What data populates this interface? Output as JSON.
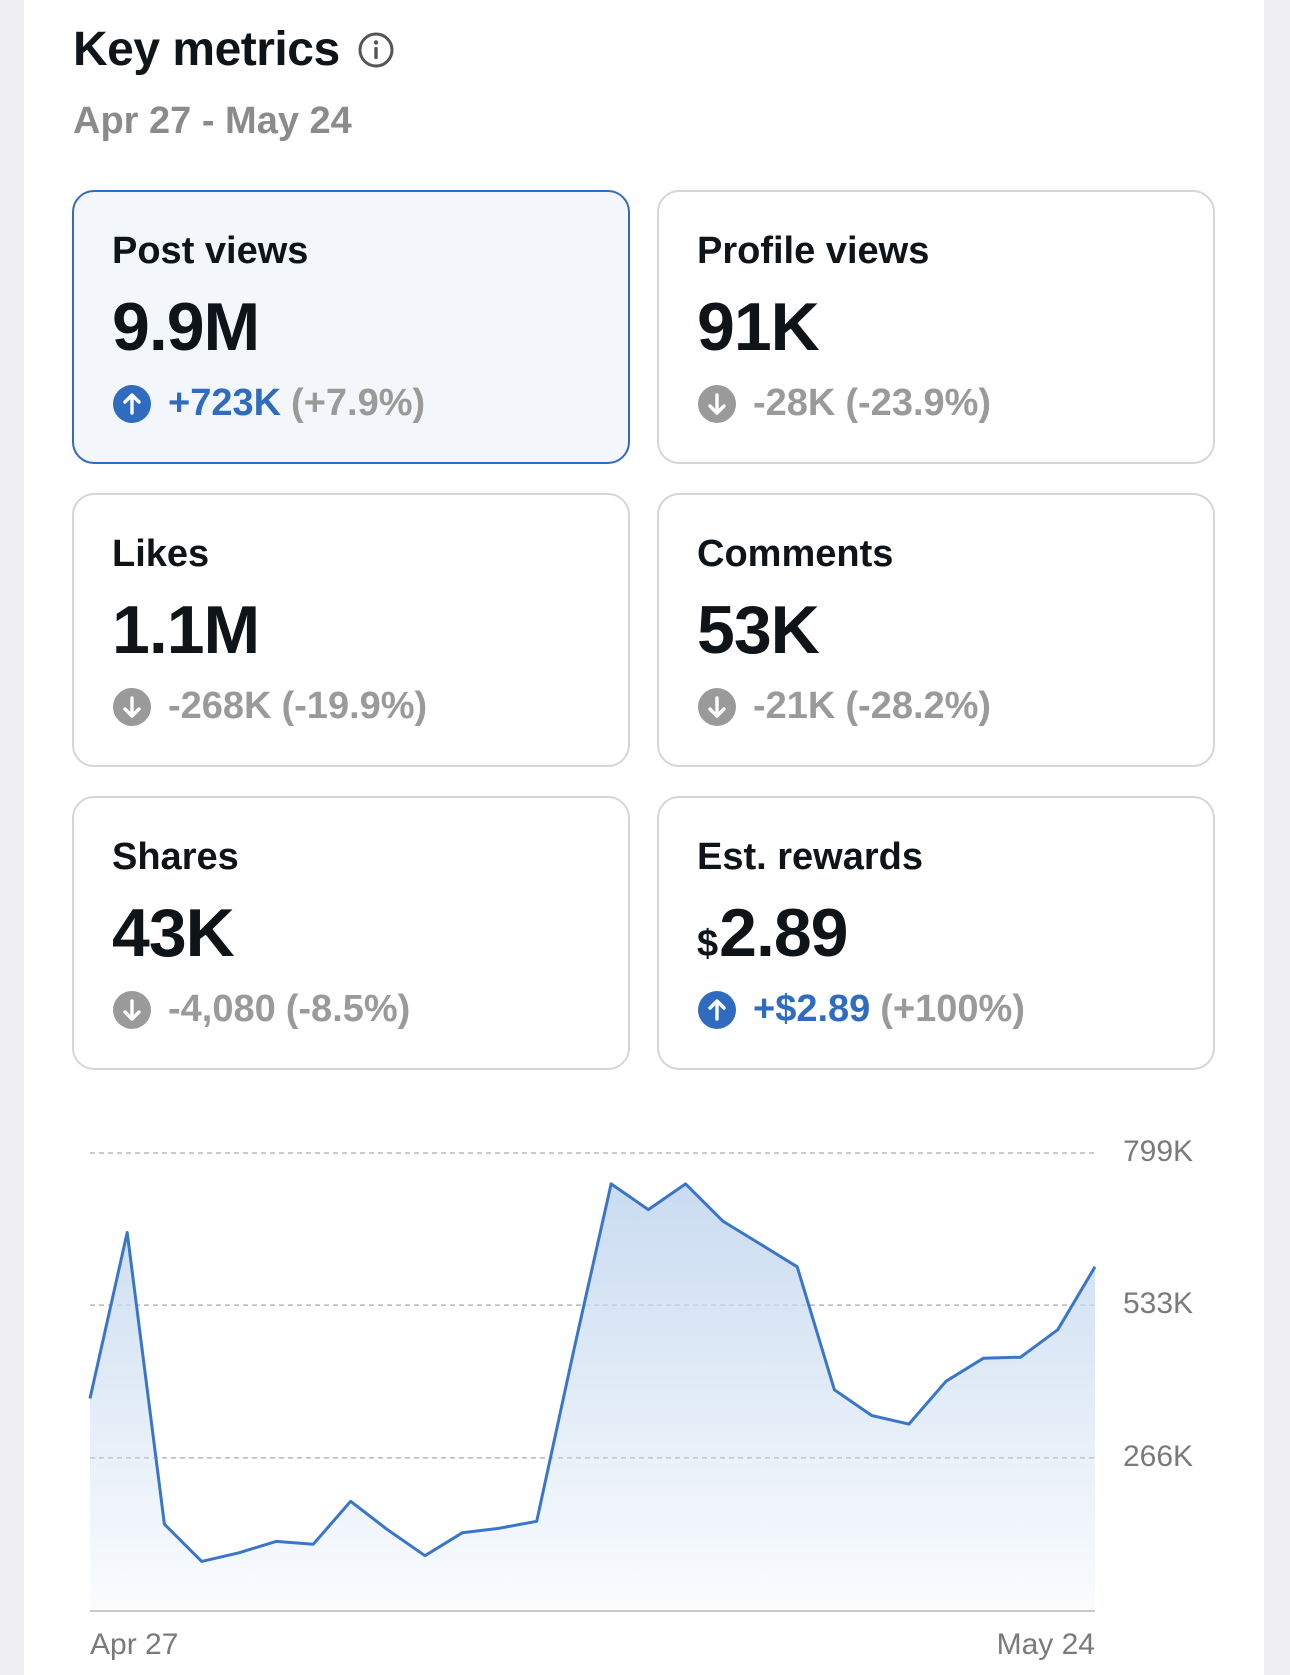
{
  "header": {
    "title": "Key metrics",
    "date_range": "Apr 27 - May 24",
    "info_icon": "info-circle-icon"
  },
  "metrics": [
    {
      "label": "Post views",
      "value": "9.9M",
      "direction": "up",
      "change": "+723K",
      "pct": "(+7.9%)",
      "selected": true
    },
    {
      "label": "Profile views",
      "value": "91K",
      "direction": "down",
      "change": "-28K",
      "pct": "(-23.9%)",
      "selected": false
    },
    {
      "label": "Likes",
      "value": "1.1M",
      "direction": "down",
      "change": "-268K",
      "pct": "(-19.9%)",
      "selected": false
    },
    {
      "label": "Comments",
      "value": "53K",
      "direction": "down",
      "change": "-21K",
      "pct": "(-28.2%)",
      "selected": false
    },
    {
      "label": "Shares",
      "value": "43K",
      "direction": "down",
      "change": "-4,080",
      "pct": "(-8.5%)",
      "selected": false
    },
    {
      "label": "Est. rewards",
      "currency": "$",
      "value": "2.89",
      "direction": "up",
      "change": "+$2.89",
      "pct": "(+100%)",
      "selected": false
    }
  ],
  "colors": {
    "accent": "#2f6cbf",
    "muted": "#9a9a9a",
    "line": "#3a76c8",
    "fill_top": "#c7daf0"
  },
  "chart_data": {
    "type": "area",
    "x": [
      "Apr 27",
      "Apr 28",
      "Apr 29",
      "Apr 30",
      "May 1",
      "May 2",
      "May 3",
      "May 4",
      "May 5",
      "May 6",
      "May 7",
      "May 8",
      "May 9",
      "May 10",
      "May 11",
      "May 12",
      "May 13",
      "May 14",
      "May 15",
      "May 16",
      "May 17",
      "May 18",
      "May 19",
      "May 20",
      "May 21",
      "May 22",
      "May 23",
      "May 24"
    ],
    "series": [
      {
        "values": [
          370000,
          660000,
          150000,
          85000,
          100000,
          120000,
          115000,
          190000,
          140000,
          95000,
          135000,
          143000,
          155000,
          455000,
          745000,
          700000,
          745000,
          680000,
          640000,
          600000,
          385000,
          340000,
          325000,
          400000,
          440000,
          442000,
          490000,
          600000
        ]
      }
    ],
    "x_tick_labels": [
      "Apr 27",
      "May 24"
    ],
    "y_tick_labels": [
      "799K",
      "533K",
      "266K"
    ],
    "y_tick_values": [
      799000,
      533000,
      266000
    ],
    "ylim": [
      0,
      799000
    ],
    "grid": "horizontal dashed",
    "y_axis_position": "right",
    "legend": "none"
  }
}
